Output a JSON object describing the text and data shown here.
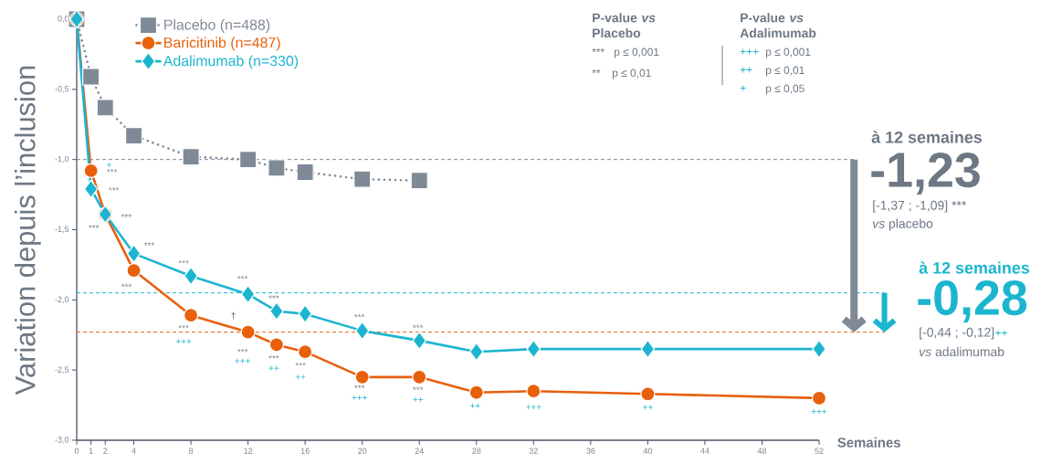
{
  "chart_data": {
    "type": "line",
    "ylabel": "Variation depuis l’inclusion",
    "xlabel": "Semaines",
    "xlim": [
      0,
      52
    ],
    "xticks": [
      0,
      1,
      2,
      4,
      8,
      12,
      16,
      20,
      24,
      28,
      32,
      36,
      40,
      44,
      48,
      52
    ],
    "ylim": [
      -3,
      0
    ],
    "yticks": [
      {
        "value": 0,
        "label": "0,0"
      },
      {
        "value": -0.5,
        "label": "-0,5"
      },
      {
        "value": -1,
        "label": "-1,0"
      },
      {
        "value": -1.5,
        "label": "-1,5"
      },
      {
        "value": -2,
        "label": "-2,0"
      },
      {
        "value": -2.5,
        "label": "-2,5"
      },
      {
        "value": -3,
        "label": "-3,0"
      }
    ],
    "legend": "top left",
    "series": [
      {
        "name": "Placebo (n=488)",
        "color": "#7f8a96",
        "marker": "square",
        "line_style": "dotted",
        "x": [
          0,
          1,
          2,
          4,
          8,
          12,
          14,
          16,
          20,
          24
        ],
        "values": [
          0,
          -0.41,
          -0.63,
          -0.83,
          -0.98,
          -1.0,
          -1.06,
          -1.09,
          -1.14,
          -1.15
        ]
      },
      {
        "name": "Baricitinib (n=487)",
        "color": "#e8600c",
        "marker": "circle",
        "line_style": "solid",
        "x": [
          0,
          1,
          2,
          4,
          8,
          12,
          14,
          16,
          20,
          24,
          28,
          32,
          40,
          52
        ],
        "values": [
          0,
          -1.08,
          -1.39,
          -1.79,
          -2.11,
          -2.23,
          -2.32,
          -2.37,
          -2.55,
          -2.55,
          -2.66,
          -2.65,
          -2.67,
          -2.7
        ]
      },
      {
        "name": "Adalimumab (n=330)",
        "color": "#1cb5d0",
        "marker": "diamond",
        "line_style": "solid",
        "x": [
          0,
          1,
          2,
          4,
          8,
          12,
          14,
          16,
          20,
          24,
          28,
          32,
          40,
          52
        ],
        "values": [
          0,
          -1.21,
          -1.39,
          -1.67,
          -1.83,
          -1.96,
          -2.08,
          -2.1,
          -2.22,
          -2.29,
          -2.37,
          -2.35,
          -2.35,
          -2.35
        ]
      }
    ],
    "ref_lines": [
      {
        "axis": "y",
        "value": -1.0,
        "color": "#7f8a96",
        "line_style": "dashed"
      },
      {
        "axis": "y",
        "value": -1.95,
        "color": "#1cb5d0",
        "line_style": "dashed"
      },
      {
        "axis": "y",
        "value": -2.23,
        "color": "#e8600c",
        "line_style": "dashed"
      }
    ],
    "annotations": [
      "P-value *vs* Placebo",
      "***",
      "p ≤ 0,001",
      "**",
      "p ≤ 0,01",
      "P-value *vs* Adalimumab",
      "+++",
      "p ≤ 0,001",
      "++",
      "p ≤ 0,01",
      "+",
      "p ≤ 0,05",
      "à 12 semaines",
      "-1,23",
      "[-1,37 ; -1,09] ***",
      "*vs* placebo",
      "à 12 semaines",
      "-0,28",
      "[-0,44 ; -0,12]",
      "++",
      "*vs* adalimumab",
      {
        "text": "+",
        "x": 1,
        "y": -1.08
      },
      {
        "text": "***",
        "x": 1,
        "y": -1.08
      },
      {
        "text": "***",
        "x": 1,
        "y": -1.21
      },
      {
        "text": "***",
        "x": 2,
        "y": -1.39
      },
      {
        "text": "***",
        "x": 2,
        "y": -1.39
      },
      {
        "text": "***",
        "x": 4,
        "y": -1.67
      },
      {
        "text": "***",
        "x": 4,
        "y": -1.79
      },
      {
        "text": "***",
        "x": 8,
        "y": -1.83
      },
      {
        "text": "***",
        "x": 8,
        "y": -2.11
      },
      {
        "text": "+++",
        "x": 8,
        "y": -2.11
      },
      {
        "text": "***",
        "x": 12,
        "y": -1.96
      },
      {
        "text": "†",
        "x": 12,
        "y": -2.23
      },
      {
        "text": "***",
        "x": 12,
        "y": -2.23
      },
      {
        "text": "+++",
        "x": 12,
        "y": -2.23
      },
      {
        "text": "***",
        "x": 14,
        "y": -2.08
      },
      {
        "text": "***",
        "x": 14,
        "y": -2.32
      },
      {
        "text": "++",
        "x": 14,
        "y": -2.32
      },
      {
        "text": "***",
        "x": 16,
        "y": -2.37
      },
      {
        "text": "++",
        "x": 16,
        "y": -2.37
      },
      {
        "text": "***",
        "x": 20,
        "y": -2.22
      },
      {
        "text": "***",
        "x": 20,
        "y": -2.55
      },
      {
        "text": "+++",
        "x": 20,
        "y": -2.55
      },
      {
        "text": "***",
        "x": 24,
        "y": -2.29
      },
      {
        "text": "***",
        "x": 24,
        "y": -2.55
      },
      {
        "text": "++",
        "x": 24,
        "y": -2.55
      },
      {
        "text": "++",
        "x": 28,
        "y": -2.66
      },
      {
        "text": "+++",
        "x": 32,
        "y": -2.65
      },
      {
        "text": "++",
        "x": 40,
        "y": -2.67
      },
      {
        "text": "+++",
        "x": 52,
        "y": -2.7
      }
    ]
  }
}
